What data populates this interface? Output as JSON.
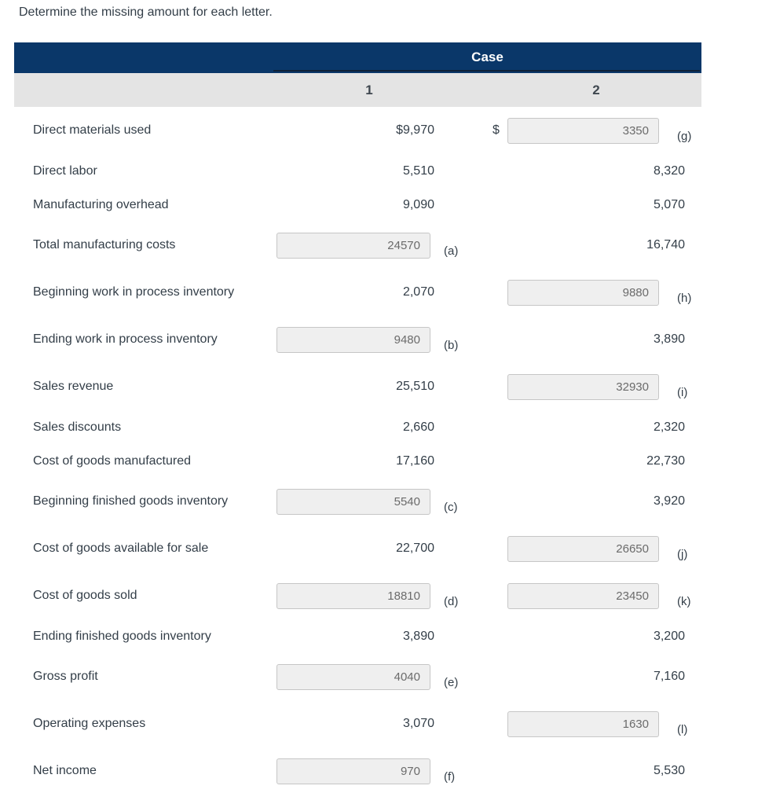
{
  "title": "Determine the missing amount for each letter.",
  "colors": {
    "header_navy": "#0a3769",
    "header_underline": "#0e2138",
    "subheader_gray": "#e4e4e4",
    "text_ink": "#333e48",
    "input_background": "#efefef",
    "input_border": "#c6c6c6",
    "input_text": "#6b6b6b"
  },
  "table": {
    "case_header": "Case",
    "columns": [
      "1",
      "2"
    ],
    "rows": [
      {
        "label": "Direct materials used",
        "case1": {
          "type": "static",
          "value": "$9,970"
        },
        "case2": {
          "type": "input",
          "prefix": "$",
          "value": "3350",
          "letter": "(g)",
          "letter_id": "g"
        }
      },
      {
        "label": "Direct labor",
        "case1": {
          "type": "static",
          "value": "5,510"
        },
        "case2": {
          "type": "static",
          "value": "8,320"
        }
      },
      {
        "label": "Manufacturing overhead",
        "case1": {
          "type": "static",
          "value": "9,090"
        },
        "case2": {
          "type": "static",
          "value": "5,070"
        }
      },
      {
        "label": "Total manufacturing costs",
        "case1": {
          "type": "input",
          "value": "24570",
          "letter": "(a)",
          "letter_id": "a"
        },
        "case2": {
          "type": "static",
          "value": "16,740"
        }
      },
      {
        "label": "Beginning work in process inventory",
        "case1": {
          "type": "static",
          "value": "2,070"
        },
        "case2": {
          "type": "input",
          "value": "9880",
          "letter": "(h)",
          "letter_id": "h"
        }
      },
      {
        "label": "Ending work in process inventory",
        "case1": {
          "type": "input",
          "value": "9480",
          "letter": "(b)",
          "letter_id": "b"
        },
        "case2": {
          "type": "static",
          "value": "3,890"
        }
      },
      {
        "label": "Sales revenue",
        "case1": {
          "type": "static",
          "value": "25,510"
        },
        "case2": {
          "type": "input",
          "value": "32930",
          "letter": "(i)",
          "letter_id": "i"
        }
      },
      {
        "label": "Sales discounts",
        "case1": {
          "type": "static",
          "value": "2,660"
        },
        "case2": {
          "type": "static",
          "value": "2,320"
        }
      },
      {
        "label": "Cost of goods manufactured",
        "case1": {
          "type": "static",
          "value": "17,160"
        },
        "case2": {
          "type": "static",
          "value": "22,730"
        }
      },
      {
        "label": "Beginning finished goods inventory",
        "case1": {
          "type": "input",
          "value": "5540",
          "letter": "(c)",
          "letter_id": "c"
        },
        "case2": {
          "type": "static",
          "value": "3,920"
        }
      },
      {
        "label": "Cost of goods available for sale",
        "case1": {
          "type": "static",
          "value": "22,700"
        },
        "case2": {
          "type": "input",
          "value": "26650",
          "letter": "(j)",
          "letter_id": "j"
        }
      },
      {
        "label": "Cost of goods sold",
        "case1": {
          "type": "input",
          "value": "18810",
          "letter": "(d)",
          "letter_id": "d"
        },
        "case2": {
          "type": "input",
          "value": "23450",
          "letter": "(k)",
          "letter_id": "k"
        }
      },
      {
        "label": "Ending finished goods inventory",
        "case1": {
          "type": "static",
          "value": "3,890"
        },
        "case2": {
          "type": "static",
          "value": "3,200"
        }
      },
      {
        "label": "Gross profit",
        "case1": {
          "type": "input",
          "value": "4040",
          "letter": "(e)",
          "letter_id": "e"
        },
        "case2": {
          "type": "static",
          "value": "7,160"
        }
      },
      {
        "label": "Operating expenses",
        "case1": {
          "type": "static",
          "value": "3,070"
        },
        "case2": {
          "type": "input",
          "value": "1630",
          "letter": "(l)",
          "letter_id": "l"
        }
      },
      {
        "label": "Net income",
        "case1": {
          "type": "input",
          "value": "970",
          "letter": "(f)",
          "letter_id": "f"
        },
        "case2": {
          "type": "static",
          "value": "5,530"
        }
      }
    ]
  }
}
